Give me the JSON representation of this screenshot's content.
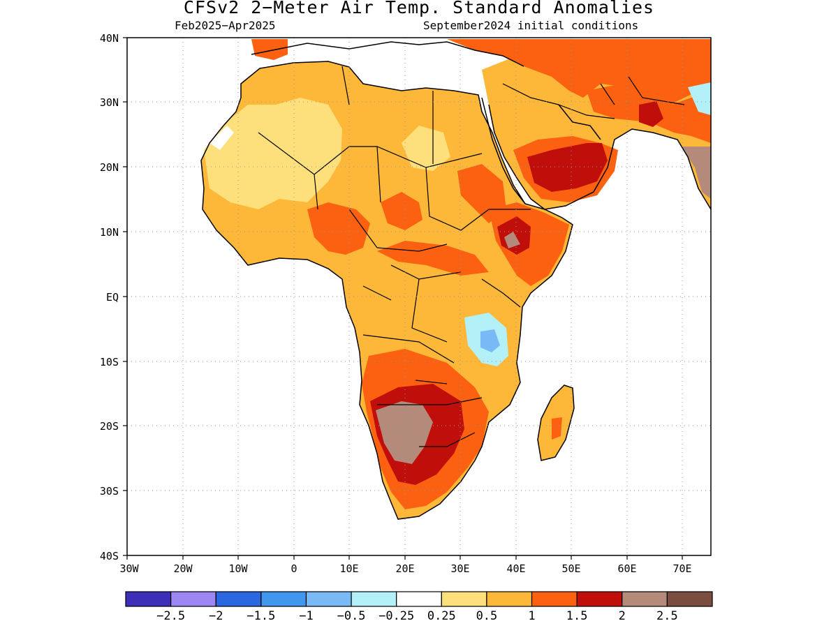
{
  "title": "CFSv2 2−Meter Air Temp. Standard Anomalies",
  "subtitle_left": "Feb2025−Apr2025",
  "subtitle_right": "September2024 initial conditions",
  "map": {
    "lon_range": [
      -30,
      75
    ],
    "lat_range": [
      -40,
      40
    ],
    "lat_ticks": [
      "40N",
      "30N",
      "20N",
      "10N",
      "EQ",
      "10S",
      "20S",
      "30S",
      "40S"
    ],
    "lon_ticks": [
      "30W",
      "20W",
      "10W",
      "0",
      "10E",
      "20E",
      "30E",
      "40E",
      "50E",
      "60E",
      "70E"
    ],
    "grid": "dotted",
    "ocean_color": "#ffffff",
    "land_outline_color": "#000000"
  },
  "colorbar": {
    "colors": [
      "#3e2fb8",
      "#9d87f5",
      "#2b67e0",
      "#4196ee",
      "#79b9f5",
      "#b4f0f8",
      "#ffffff",
      "#fde07c",
      "#fdb83a",
      "#fb6110",
      "#c00e0a",
      "#b48a7b",
      "#7a4d40"
    ],
    "labels": [
      "−2.5",
      "−2",
      "−1.5",
      "−1",
      "−0.5",
      "−0.25",
      "0.25",
      "0.5",
      "1",
      "1.5",
      "2",
      "2.5"
    ]
  }
}
